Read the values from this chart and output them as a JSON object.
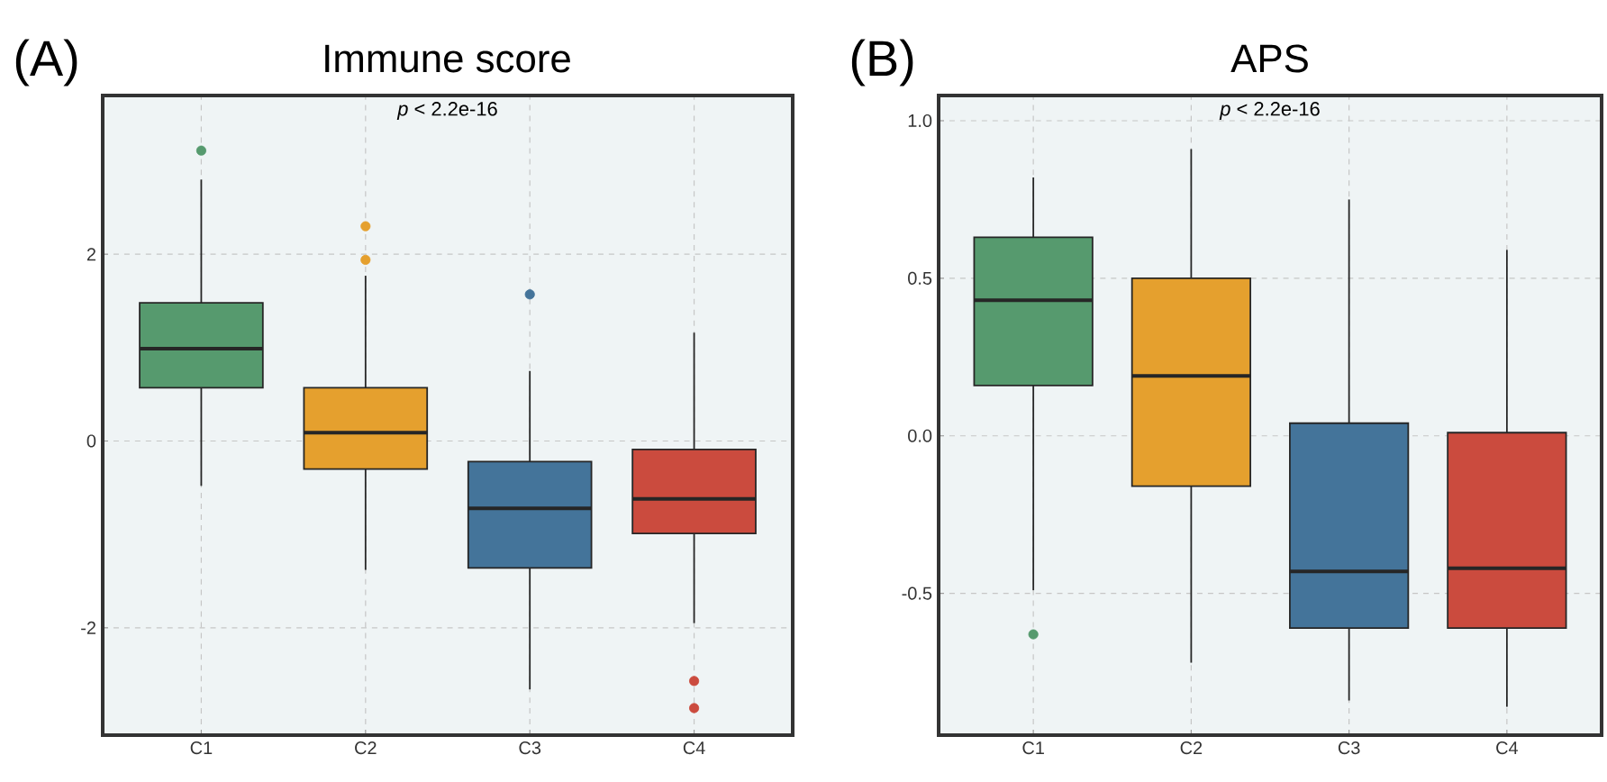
{
  "chart_data": [
    {
      "type": "box",
      "title": "Immune score",
      "categories": [
        "C1",
        "C2",
        "C3",
        "C4"
      ],
      "colors": [
        "#569a6e",
        "#e5a02e",
        "#44749a",
        "#cb4b3e"
      ],
      "boxes": [
        {
          "low": -0.48,
          "q1": 0.57,
          "median": 0.99,
          "q3": 1.48,
          "high": 2.8,
          "outliers": [
            3.11
          ]
        },
        {
          "low": -1.38,
          "q1": -0.3,
          "median": 0.09,
          "q3": 0.57,
          "high": 1.77,
          "outliers": [
            2.3,
            1.94
          ]
        },
        {
          "low": -2.66,
          "q1": -1.36,
          "median": -0.72,
          "q3": -0.22,
          "high": 0.75,
          "outliers": [
            1.57
          ]
        },
        {
          "low": -1.95,
          "q1": -0.99,
          "median": -0.62,
          "q3": -0.09,
          "high": 1.16,
          "outliers": [
            -2.57,
            -2.86
          ]
        }
      ],
      "ylim": [
        -3.15,
        3.7
      ],
      "yticks": [
        -2,
        0,
        2
      ],
      "grid": true,
      "annotations": [
        "(A)",
        "*p* < 2.2e-16"
      ]
    },
    {
      "type": "box",
      "title": "APS",
      "categories": [
        "C1",
        "C2",
        "C3",
        "C4"
      ],
      "colors": [
        "#569a6e",
        "#e5a02e",
        "#44749a",
        "#cb4b3e"
      ],
      "boxes": [
        {
          "low": -0.49,
          "q1": 0.16,
          "median": 0.43,
          "q3": 0.63,
          "high": 0.82,
          "outliers": [
            -0.63
          ]
        },
        {
          "low": -0.72,
          "q1": -0.16,
          "median": 0.19,
          "q3": 0.5,
          "high": 0.91
        },
        {
          "low": -0.84,
          "q1": -0.61,
          "median": -0.43,
          "q3": 0.04,
          "high": 0.75
        },
        {
          "low": -0.86,
          "q1": -0.61,
          "median": -0.42,
          "q3": 0.01,
          "high": 0.59
        }
      ],
      "ylim": [
        -0.95,
        1.08
      ],
      "yticks": [
        {
          "value": -0.5,
          "label": "-0.5"
        },
        {
          "value": 0,
          "label": "0.0"
        },
        {
          "value": 0.5,
          "label": "0.5"
        },
        {
          "value": 1,
          "label": "1.0"
        }
      ],
      "grid": true,
      "annotations": [
        "(B)",
        "*p* < 2.2e-16"
      ]
    }
  ]
}
